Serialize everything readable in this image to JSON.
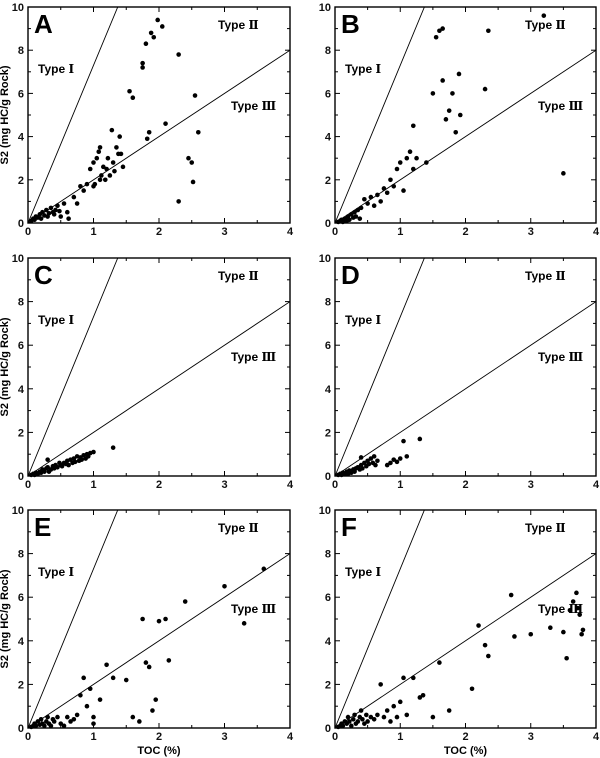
{
  "colors": {
    "points": "#000000",
    "axes": "#000000",
    "lines": "#000000",
    "background": "#ffffff"
  },
  "chart_data": [
    {
      "panel": "A",
      "type": "scatter",
      "xlim": [
        0,
        4
      ],
      "ylim": [
        0,
        10
      ],
      "x_ticks": [
        "0",
        "1",
        "2",
        "3",
        "4"
      ],
      "y_ticks": [
        "0",
        "2",
        "4",
        "6",
        "8",
        "10"
      ],
      "xlabel": "",
      "ylabel": "S2 (mg HC/g Rock)",
      "type_labels": [
        "Type Ⅰ",
        "Type Ⅱ",
        "Type Ⅲ"
      ],
      "boundary_lines": [
        {
          "x": [
            0,
            1.37
          ],
          "y": [
            0,
            10
          ]
        },
        {
          "x": [
            0,
            4
          ],
          "y": [
            0,
            8
          ]
        }
      ],
      "points": [
        [
          0.05,
          0.1
        ],
        [
          0.08,
          0.2
        ],
        [
          0.1,
          0.15
        ],
        [
          0.12,
          0.3
        ],
        [
          0.15,
          0.25
        ],
        [
          0.18,
          0.4
        ],
        [
          0.2,
          0.2
        ],
        [
          0.22,
          0.5
        ],
        [
          0.25,
          0.35
        ],
        [
          0.28,
          0.6
        ],
        [
          0.3,
          0.3
        ],
        [
          0.32,
          0.45
        ],
        [
          0.35,
          0.7
        ],
        [
          0.38,
          0.5
        ],
        [
          0.4,
          0.4
        ],
        [
          0.42,
          0.6
        ],
        [
          0.45,
          0.8
        ],
        [
          0.48,
          0.55
        ],
        [
          0.5,
          0.3
        ],
        [
          0.55,
          0.9
        ],
        [
          0.6,
          0.5
        ],
        [
          0.62,
          0.2
        ],
        [
          0.7,
          1.2
        ],
        [
          0.75,
          0.9
        ],
        [
          0.8,
          1.7
        ],
        [
          0.85,
          1.5
        ],
        [
          0.9,
          1.8
        ],
        [
          0.95,
          2.5
        ],
        [
          1.0,
          1.7
        ],
        [
          1.0,
          2.8
        ],
        [
          1.02,
          1.8
        ],
        [
          1.05,
          3.0
        ],
        [
          1.08,
          3.3
        ],
        [
          1.1,
          2.0
        ],
        [
          1.1,
          3.5
        ],
        [
          1.12,
          2.2
        ],
        [
          1.15,
          2.6
        ],
        [
          1.18,
          2.0
        ],
        [
          1.2,
          2.5
        ],
        [
          1.22,
          3.0
        ],
        [
          1.25,
          2.2
        ],
        [
          1.28,
          4.3
        ],
        [
          1.3,
          2.8
        ],
        [
          1.32,
          2.4
        ],
        [
          1.35,
          3.5
        ],
        [
          1.38,
          3.2
        ],
        [
          1.4,
          4.0
        ],
        [
          1.42,
          3.2
        ],
        [
          1.45,
          2.6
        ],
        [
          1.55,
          6.1
        ],
        [
          1.6,
          5.8
        ],
        [
          1.75,
          7.2
        ],
        [
          1.75,
          7.4
        ],
        [
          1.8,
          8.3
        ],
        [
          1.82,
          3.9
        ],
        [
          1.85,
          4.2
        ],
        [
          1.88,
          8.8
        ],
        [
          1.92,
          8.6
        ],
        [
          1.98,
          9.4
        ],
        [
          2.05,
          9.1
        ],
        [
          2.1,
          4.6
        ],
        [
          2.3,
          7.8
        ],
        [
          2.3,
          1.0
        ],
        [
          2.45,
          3.0
        ],
        [
          2.5,
          2.8
        ],
        [
          2.52,
          1.9
        ],
        [
          2.55,
          5.9
        ],
        [
          2.6,
          4.2
        ]
      ]
    },
    {
      "panel": "B",
      "type": "scatter",
      "xlim": [
        0,
        4
      ],
      "ylim": [
        0,
        10
      ],
      "x_ticks": [
        "0",
        "1",
        "2",
        "3",
        "4"
      ],
      "y_ticks": [
        "0",
        "2",
        "4",
        "6",
        "8",
        "10"
      ],
      "xlabel": "",
      "ylabel": "",
      "type_labels": [
        "Type Ⅰ",
        "Type Ⅱ",
        "Type Ⅲ"
      ],
      "boundary_lines": [
        {
          "x": [
            0,
            1.37
          ],
          "y": [
            0,
            10
          ]
        },
        {
          "x": [
            0,
            4
          ],
          "y": [
            0,
            8
          ]
        }
      ],
      "points": [
        [
          0.05,
          0.05
        ],
        [
          0.08,
          0.1
        ],
        [
          0.1,
          0.15
        ],
        [
          0.12,
          0.05
        ],
        [
          0.15,
          0.2
        ],
        [
          0.18,
          0.1
        ],
        [
          0.2,
          0.3
        ],
        [
          0.22,
          0.15
        ],
        [
          0.25,
          0.4
        ],
        [
          0.28,
          0.25
        ],
        [
          0.3,
          0.5
        ],
        [
          0.32,
          0.3
        ],
        [
          0.35,
          0.6
        ],
        [
          0.38,
          0.2
        ],
        [
          0.4,
          0.7
        ],
        [
          0.45,
          1.1
        ],
        [
          0.5,
          0.9
        ],
        [
          0.55,
          1.2
        ],
        [
          0.6,
          0.8
        ],
        [
          0.65,
          1.3
        ],
        [
          0.7,
          1.0
        ],
        [
          0.75,
          1.6
        ],
        [
          0.8,
          1.4
        ],
        [
          0.85,
          2.0
        ],
        [
          0.9,
          1.7
        ],
        [
          0.95,
          2.5
        ],
        [
          1.0,
          2.8
        ],
        [
          1.05,
          1.5
        ],
        [
          1.1,
          3.0
        ],
        [
          1.15,
          3.3
        ],
        [
          1.2,
          4.5
        ],
        [
          1.2,
          2.5
        ],
        [
          1.25,
          3.0
        ],
        [
          1.4,
          2.8
        ],
        [
          1.5,
          6.0
        ],
        [
          1.55,
          8.6
        ],
        [
          1.6,
          8.9
        ],
        [
          1.65,
          9.0
        ],
        [
          1.65,
          6.6
        ],
        [
          1.7,
          4.8
        ],
        [
          1.75,
          5.2
        ],
        [
          1.8,
          6.0
        ],
        [
          1.85,
          4.2
        ],
        [
          1.9,
          6.9
        ],
        [
          1.92,
          5.0
        ],
        [
          2.3,
          6.2
        ],
        [
          2.35,
          8.9
        ],
        [
          3.2,
          9.6
        ],
        [
          3.5,
          2.3
        ]
      ]
    },
    {
      "panel": "C",
      "type": "scatter",
      "xlim": [
        0,
        4
      ],
      "ylim": [
        0,
        10
      ],
      "x_ticks": [
        "0",
        "1",
        "2",
        "3",
        "4"
      ],
      "y_ticks": [
        "0",
        "2",
        "4",
        "6",
        "8",
        "10"
      ],
      "xlabel": "",
      "ylabel": "S2 (mg HC/g Rock)",
      "type_labels": [
        "Type Ⅰ",
        "Type Ⅱ",
        "Type Ⅲ"
      ],
      "boundary_lines": [
        {
          "x": [
            0,
            1.37
          ],
          "y": [
            0,
            10
          ]
        },
        {
          "x": [
            0,
            4
          ],
          "y": [
            0,
            8
          ]
        }
      ],
      "points": [
        [
          0.05,
          0.05
        ],
        [
          0.08,
          0.1
        ],
        [
          0.1,
          0.05
        ],
        [
          0.12,
          0.15
        ],
        [
          0.15,
          0.1
        ],
        [
          0.18,
          0.2
        ],
        [
          0.2,
          0.15
        ],
        [
          0.22,
          0.3
        ],
        [
          0.25,
          0.2
        ],
        [
          0.28,
          0.35
        ],
        [
          0.3,
          0.4
        ],
        [
          0.32,
          0.2
        ],
        [
          0.35,
          0.3
        ],
        [
          0.38,
          0.45
        ],
        [
          0.4,
          0.35
        ],
        [
          0.42,
          0.5
        ],
        [
          0.45,
          0.4
        ],
        [
          0.48,
          0.6
        ],
        [
          0.5,
          0.5
        ],
        [
          0.52,
          0.45
        ],
        [
          0.55,
          0.6
        ],
        [
          0.58,
          0.55
        ],
        [
          0.6,
          0.7
        ],
        [
          0.62,
          0.5
        ],
        [
          0.65,
          0.75
        ],
        [
          0.68,
          0.6
        ],
        [
          0.7,
          0.8
        ],
        [
          0.72,
          0.65
        ],
        [
          0.75,
          0.9
        ],
        [
          0.78,
          0.7
        ],
        [
          0.8,
          0.85
        ],
        [
          0.82,
          0.75
        ],
        [
          0.85,
          0.95
        ],
        [
          0.88,
          0.8
        ],
        [
          0.9,
          1.0
        ],
        [
          0.92,
          0.9
        ],
        [
          0.95,
          1.05
        ],
        [
          1.0,
          1.1
        ],
        [
          1.3,
          1.3
        ],
        [
          0.3,
          0.75
        ]
      ]
    },
    {
      "panel": "D",
      "type": "scatter",
      "xlim": [
        0,
        4
      ],
      "ylim": [
        0,
        10
      ],
      "x_ticks": [
        "0",
        "1",
        "2",
        "3",
        "4"
      ],
      "y_ticks": [
        "0",
        "2",
        "4",
        "6",
        "8",
        "10"
      ],
      "xlabel": "",
      "ylabel": "",
      "type_labels": [
        "Type Ⅰ",
        "Type Ⅱ",
        "Type Ⅲ"
      ],
      "boundary_lines": [
        {
          "x": [
            0,
            1.37
          ],
          "y": [
            0,
            10
          ]
        },
        {
          "x": [
            0,
            4
          ],
          "y": [
            0,
            8
          ]
        }
      ],
      "points": [
        [
          0.05,
          0.05
        ],
        [
          0.08,
          0.1
        ],
        [
          0.1,
          0.05
        ],
        [
          0.12,
          0.15
        ],
        [
          0.15,
          0.1
        ],
        [
          0.18,
          0.2
        ],
        [
          0.2,
          0.1
        ],
        [
          0.22,
          0.25
        ],
        [
          0.25,
          0.15
        ],
        [
          0.28,
          0.3
        ],
        [
          0.3,
          0.2
        ],
        [
          0.32,
          0.35
        ],
        [
          0.35,
          0.4
        ],
        [
          0.38,
          0.3
        ],
        [
          0.4,
          0.5
        ],
        [
          0.42,
          0.35
        ],
        [
          0.45,
          0.6
        ],
        [
          0.48,
          0.45
        ],
        [
          0.5,
          0.7
        ],
        [
          0.52,
          0.55
        ],
        [
          0.55,
          0.8
        ],
        [
          0.58,
          0.6
        ],
        [
          0.6,
          0.9
        ],
        [
          0.62,
          0.5
        ],
        [
          0.65,
          0.7
        ],
        [
          0.4,
          0.85
        ],
        [
          0.8,
          0.5
        ],
        [
          0.85,
          0.6
        ],
        [
          0.9,
          0.75
        ],
        [
          0.95,
          0.65
        ],
        [
          1.0,
          0.8
        ],
        [
          1.05,
          1.6
        ],
        [
          1.1,
          0.9
        ],
        [
          1.3,
          1.7
        ]
      ]
    },
    {
      "panel": "E",
      "type": "scatter",
      "xlim": [
        0,
        4
      ],
      "ylim": [
        0,
        10
      ],
      "x_ticks": [
        "0",
        "1",
        "2",
        "3",
        "4"
      ],
      "y_ticks": [
        "0",
        "2",
        "4",
        "6",
        "8",
        "10"
      ],
      "xlabel": "TOC (%)",
      "ylabel": "S2 (mg HC/g Rock)",
      "type_labels": [
        "Type Ⅰ",
        "Type Ⅱ",
        "Type Ⅲ"
      ],
      "boundary_lines": [
        {
          "x": [
            0,
            1.37
          ],
          "y": [
            0,
            10
          ]
        },
        {
          "x": [
            0,
            4
          ],
          "y": [
            0,
            8
          ]
        }
      ],
      "points": [
        [
          0.05,
          0.05
        ],
        [
          0.08,
          0.1
        ],
        [
          0.1,
          0.2
        ],
        [
          0.12,
          0.1
        ],
        [
          0.15,
          0.3
        ],
        [
          0.18,
          0.15
        ],
        [
          0.2,
          0.4
        ],
        [
          0.22,
          0.2
        ],
        [
          0.25,
          0.1
        ],
        [
          0.28,
          0.3
        ],
        [
          0.3,
          0.5
        ],
        [
          0.32,
          0.2
        ],
        [
          0.35,
          0.1
        ],
        [
          0.38,
          0.4
        ],
        [
          0.4,
          0.3
        ],
        [
          0.45,
          0.5
        ],
        [
          0.5,
          0.2
        ],
        [
          0.55,
          0.1
        ],
        [
          0.6,
          0.5
        ],
        [
          0.65,
          0.3
        ],
        [
          0.7,
          0.4
        ],
        [
          0.75,
          0.6
        ],
        [
          0.8,
          1.5
        ],
        [
          0.85,
          2.3
        ],
        [
          0.9,
          1.0
        ],
        [
          0.95,
          1.8
        ],
        [
          1.0,
          0.2
        ],
        [
          1.0,
          0.5
        ],
        [
          1.1,
          1.3
        ],
        [
          1.2,
          2.9
        ],
        [
          1.3,
          2.3
        ],
        [
          1.5,
          2.2
        ],
        [
          1.6,
          0.5
        ],
        [
          1.7,
          0.3
        ],
        [
          1.75,
          5.0
        ],
        [
          1.8,
          3.0
        ],
        [
          1.85,
          2.8
        ],
        [
          1.9,
          0.8
        ],
        [
          1.95,
          1.3
        ],
        [
          2.0,
          4.9
        ],
        [
          2.1,
          5.0
        ],
        [
          2.15,
          3.1
        ],
        [
          2.4,
          5.8
        ],
        [
          3.0,
          6.5
        ],
        [
          3.3,
          4.8
        ],
        [
          3.6,
          7.3
        ]
      ]
    },
    {
      "panel": "F",
      "type": "scatter",
      "xlim": [
        0,
        4
      ],
      "ylim": [
        0,
        10
      ],
      "x_ticks": [
        "0",
        "1",
        "2",
        "3",
        "4"
      ],
      "y_ticks": [
        "0",
        "2",
        "4",
        "6",
        "8",
        "10"
      ],
      "xlabel": "TOC (%)",
      "ylabel": "",
      "type_labels": [
        "Type Ⅰ",
        "Type Ⅱ",
        "Type Ⅲ"
      ],
      "boundary_lines": [
        {
          "x": [
            0,
            1.37
          ],
          "y": [
            0,
            10
          ]
        },
        {
          "x": [
            0,
            4
          ],
          "y": [
            0,
            8
          ]
        }
      ],
      "points": [
        [
          0.05,
          0.05
        ],
        [
          0.08,
          0.1
        ],
        [
          0.1,
          0.2
        ],
        [
          0.12,
          0.1
        ],
        [
          0.15,
          0.3
        ],
        [
          0.18,
          0.2
        ],
        [
          0.2,
          0.5
        ],
        [
          0.22,
          0.3
        ],
        [
          0.25,
          0.1
        ],
        [
          0.28,
          0.4
        ],
        [
          0.3,
          0.6
        ],
        [
          0.32,
          0.2
        ],
        [
          0.35,
          0.3
        ],
        [
          0.38,
          0.5
        ],
        [
          0.4,
          0.8
        ],
        [
          0.42,
          0.4
        ],
        [
          0.45,
          0.2
        ],
        [
          0.48,
          0.6
        ],
        [
          0.5,
          0.3
        ],
        [
          0.55,
          0.5
        ],
        [
          0.6,
          0.4
        ],
        [
          0.65,
          0.6
        ],
        [
          0.7,
          2.0
        ],
        [
          0.75,
          0.5
        ],
        [
          0.8,
          0.8
        ],
        [
          0.85,
          0.3
        ],
        [
          0.9,
          1.0
        ],
        [
          0.95,
          0.5
        ],
        [
          1.0,
          1.2
        ],
        [
          1.05,
          2.3
        ],
        [
          1.1,
          0.6
        ],
        [
          1.2,
          2.3
        ],
        [
          1.3,
          1.4
        ],
        [
          1.35,
          1.5
        ],
        [
          1.5,
          0.5
        ],
        [
          1.6,
          3.0
        ],
        [
          1.75,
          0.8
        ],
        [
          2.1,
          1.8
        ],
        [
          2.2,
          4.7
        ],
        [
          2.3,
          3.8
        ],
        [
          2.35,
          3.3
        ],
        [
          2.7,
          6.1
        ],
        [
          2.75,
          4.2
        ],
        [
          3.0,
          4.3
        ],
        [
          3.3,
          4.6
        ],
        [
          3.5,
          4.4
        ],
        [
          3.55,
          3.2
        ],
        [
          3.6,
          5.4
        ],
        [
          3.65,
          5.8
        ],
        [
          3.7,
          6.2
        ],
        [
          3.72,
          5.5
        ],
        [
          3.75,
          5.2
        ],
        [
          3.78,
          4.3
        ],
        [
          3.8,
          4.5
        ]
      ]
    }
  ]
}
